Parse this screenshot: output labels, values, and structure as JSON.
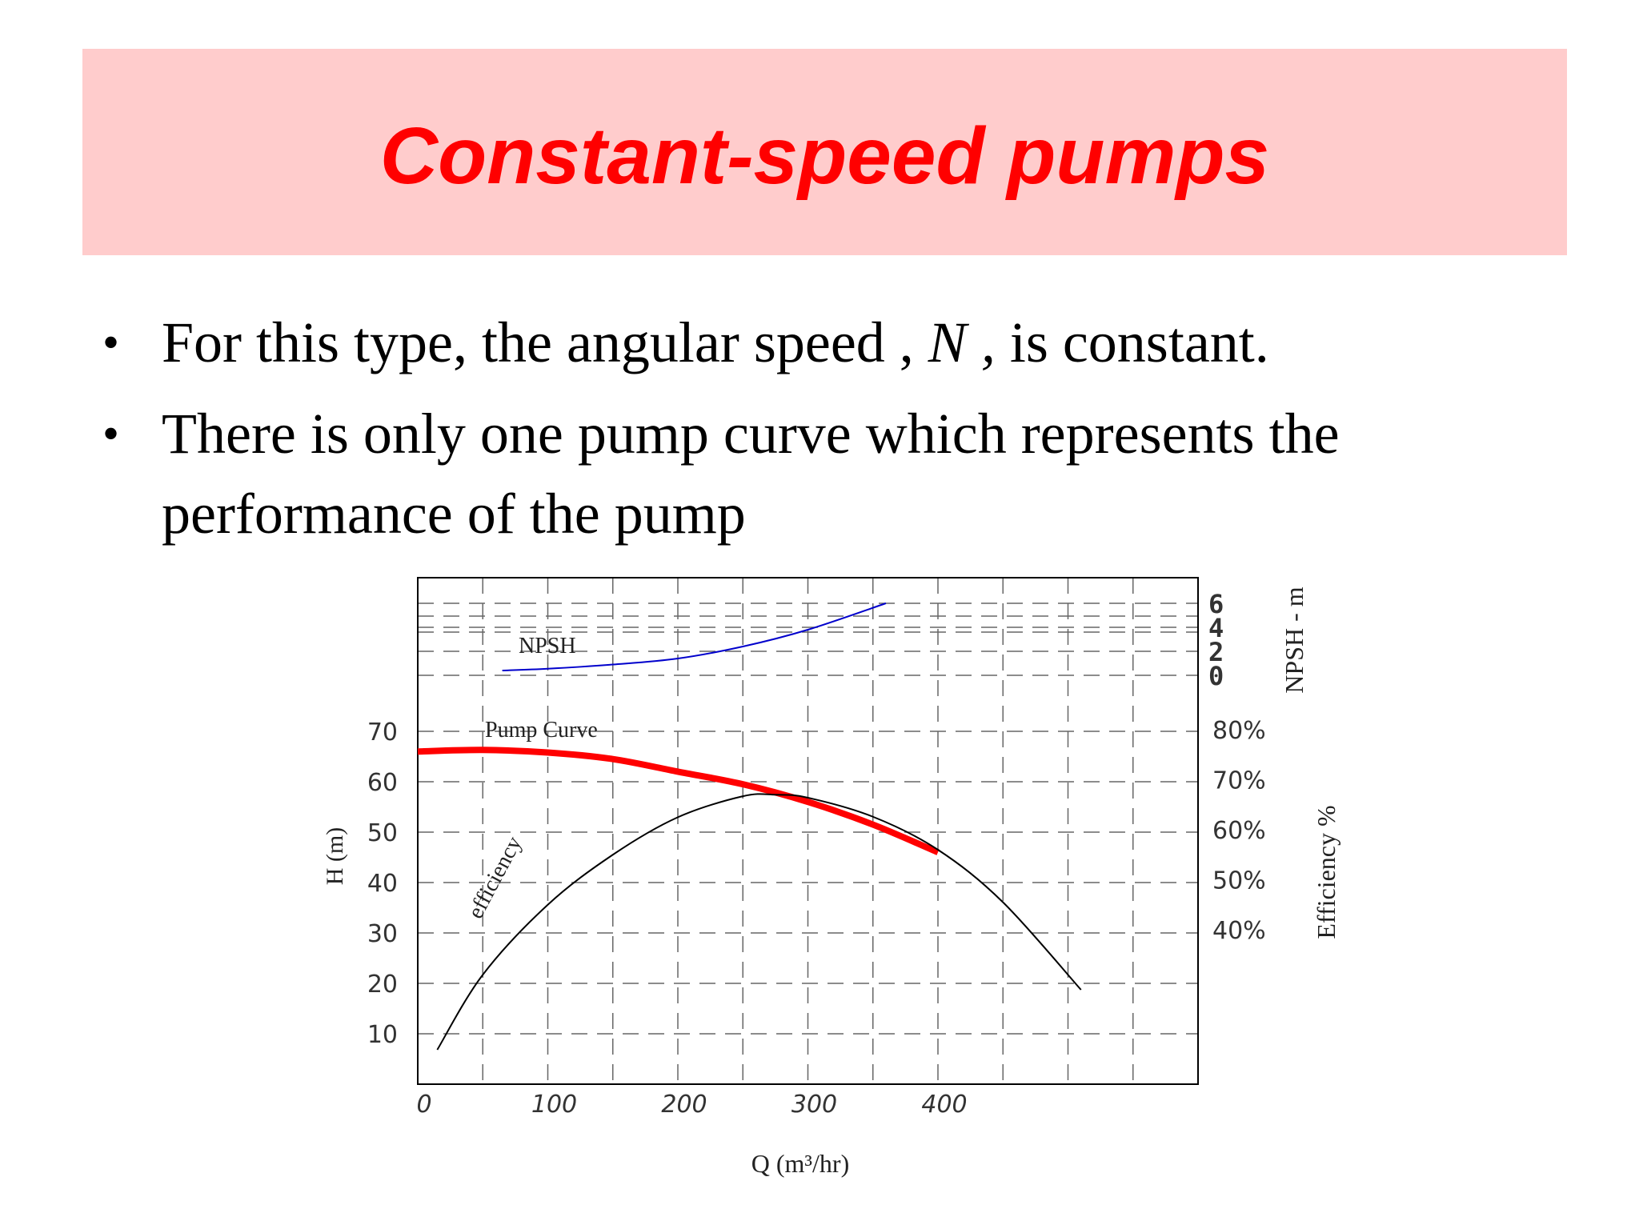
{
  "slide": {
    "title": "Constant-speed pumps",
    "bullets": [
      {
        "before": "For this type, the angular speed , ",
        "italic": "N ,",
        "after": " is constant."
      },
      {
        "before": "There is only one pump curve which represents the performance of the pump",
        "italic": "",
        "after": ""
      }
    ]
  },
  "chart_data": {
    "type": "line",
    "title": "",
    "xlabel": "Q (m³/hr)",
    "ylabel": "H (m)",
    "y2label": "Efficiency %",
    "y3label": "NPSH - m",
    "xlim": [
      0,
      600
    ],
    "ylim": [
      0,
      80
    ],
    "x_ticks": [
      "0",
      "100",
      "200",
      "300",
      "400"
    ],
    "y_ticks": [
      "10",
      "20",
      "30",
      "40",
      "50",
      "60",
      "70"
    ],
    "efficiency_ticks": [
      "80%",
      "70%",
      "60%",
      "50%",
      "40%"
    ],
    "npsh_ticks": [
      "6",
      "4",
      "2",
      "0"
    ],
    "grid": true,
    "series": [
      {
        "name": "Pump Curve",
        "color": "#ff0000",
        "axis": "H",
        "x": [
          0,
          50,
          100,
          150,
          200,
          250,
          300,
          350,
          400
        ],
        "y": [
          66,
          66.3,
          65.8,
          64.5,
          62,
          59.5,
          56,
          51.5,
          46
        ]
      },
      {
        "name": "efficiency",
        "color": "#000000",
        "axis": "efficiency",
        "x": [
          15,
          50,
          100,
          150,
          200,
          250,
          275,
          300,
          350,
          400,
          450,
          510
        ],
        "y": [
          16,
          31,
          45,
          55,
          62.5,
          66.7,
          67,
          66.4,
          62.6,
          56,
          45.5,
          28
        ]
      },
      {
        "name": "NPSH",
        "color": "#0000cc",
        "axis": "NPSH",
        "x": [
          65,
          100,
          150,
          200,
          250,
          300,
          360
        ],
        "y": [
          0.4,
          0.55,
          0.9,
          1.4,
          2.4,
          3.8,
          6.0
        ]
      }
    ]
  }
}
